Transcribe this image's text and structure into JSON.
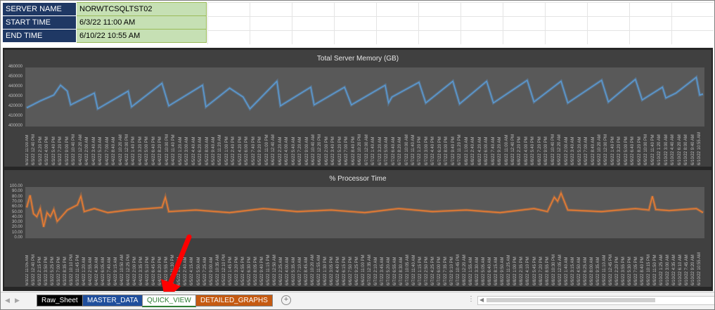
{
  "info": [
    {
      "label": "SERVER NAME",
      "value": "NORWTCSQLTST02"
    },
    {
      "label": "START TIME",
      "value": "6/3/22 11:00 AM"
    },
    {
      "label": "END TIME",
      "value": "6/10/22 10:55 AM"
    }
  ],
  "tabs": [
    {
      "label": "Raw_Sheet",
      "bg": "#000000",
      "fg": "#ffffff"
    },
    {
      "label": "MASTER_DATA",
      "bg": "#1f4e9c",
      "fg": "#ffffff"
    },
    {
      "label": "QUICK_VIEW",
      "bg": "#ffffff",
      "fg": "#2e7d32",
      "active": true
    },
    {
      "label": "DETAILED_GRAPHS",
      "bg": "#c55a11",
      "fg": "#ffffff"
    }
  ],
  "icons": {
    "add_sheet": "plus-circle-icon",
    "annotation": "red-arrow-icon",
    "options": "kebab-icon"
  },
  "colors": {
    "memory_line": "#5b9bd5",
    "cpu_line": "#ed7d31",
    "arrow": "#ff0000"
  },
  "chart_data": [
    {
      "type": "line",
      "title": "Total Server Memory (GB)",
      "ylim": [
        400000,
        460000
      ],
      "yticks": [
        "460000",
        "450000",
        "440000",
        "430000",
        "420000",
        "410000",
        "400000"
      ],
      "xlabels": [
        "6/3/22 11:00 AM",
        "6/3/22 12:40 PM",
        "6/3/22 2:20 PM",
        "6/3/22 4:00 PM",
        "6/3/22 5:40 PM",
        "6/3/22 7:20 PM",
        "6/3/22 9:00 PM",
        "6/3/22 10:40 PM",
        "6/4/22 12:20 AM",
        "6/4/22 2:00 AM",
        "6/4/22 3:40 AM",
        "6/4/22 5:20 AM",
        "6/4/22 7:00 AM",
        "6/4/22 8:40 AM",
        "6/4/22 10:20 AM",
        "6/4/22 12:00 PM",
        "6/4/22 1:40 PM",
        "6/4/22 3:20 PM",
        "6/4/22 5:00 PM",
        "6/4/22 6:40 PM",
        "6/4/22 8:20 PM",
        "6/4/22 10:00 PM",
        "6/4/22 11:40 PM",
        "6/5/22 1:20 AM",
        "6/5/22 3:00 AM",
        "6/5/22 4:40 AM",
        "6/5/22 6:20 AM",
        "6/5/22 8:00 AM",
        "6/5/22 9:40 AM",
        "6/5/22 11:20 AM",
        "6/5/22 1:00 PM",
        "6/5/22 2:40 PM",
        "6/5/22 4:20 PM",
        "6/5/22 6:00 PM",
        "6/5/22 7:40 PM",
        "6/5/22 9:20 PM",
        "6/5/22 11:00 PM",
        "6/6/22 12:40 AM",
        "6/6/22 2:20 AM",
        "6/6/22 4:00 AM",
        "6/6/22 5:40 AM",
        "6/6/22 7:20 AM",
        "6/6/22 9:00 AM",
        "6/6/22 10:40 AM",
        "6/6/22 12:20 PM",
        "6/6/22 2:00 PM",
        "6/6/22 3:40 PM",
        "6/6/22 5:20 PM",
        "6/6/22 7:00 PM",
        "6/6/22 8:40 PM",
        "6/6/22 10:20 PM",
        "6/7/22 12:00 AM",
        "6/7/22 1:40 AM",
        "6/7/22 3:20 AM",
        "6/7/22 5:00 AM",
        "6/7/22 6:40 AM",
        "6/7/22 8:20 AM",
        "6/7/22 10:00 AM",
        "6/7/22 11:40 AM",
        "6/7/22 1:20 PM",
        "6/7/22 3:00 PM",
        "6/7/22 4:40 PM",
        "6/7/22 6:20 PM",
        "6/7/22 8:00 PM",
        "6/7/22 9:40 PM",
        "6/7/22 11:20 PM",
        "6/8/22 1:00 AM",
        "6/8/22 2:40 AM",
        "6/8/22 4:20 AM",
        "6/8/22 6:00 AM",
        "6/8/22 7:40 AM",
        "6/8/22 9:20 AM",
        "6/8/22 11:00 AM",
        "6/8/22 12:40 PM",
        "6/8/22 2:20 PM",
        "6/8/22 4:00 PM",
        "6/8/22 5:40 PM",
        "6/8/22 7:20 PM",
        "6/8/22 9:00 PM",
        "6/8/22 10:40 PM",
        "6/9/22 12:20 AM",
        "6/9/22 2:00 AM",
        "6/9/22 3:40 AM",
        "6/9/22 5:20 AM",
        "6/9/22 7:00 AM",
        "6/9/22 8:40 AM",
        "6/9/22 10:20 AM",
        "6/9/22 12:00 PM",
        "6/9/22 1:40 PM",
        "6/9/22 3:20 PM",
        "6/9/22 5:00 PM",
        "6/9/22 6:40 PM",
        "6/9/22 8:20 PM",
        "6/9/22 10:00 PM",
        "6/9/22 11:40 PM",
        "6/10/22 1:20 AM",
        "6/10/22 3:00 AM",
        "6/10/22 4:40 AM",
        "6/10/22 6:20 AM",
        "6/10/22 8:00 AM",
        "6/10/22 9:40 AM",
        "6/10/22 10:55 AM"
      ],
      "x": [
        0,
        0.02,
        0.04,
        0.05,
        0.06,
        0.065,
        0.1,
        0.105,
        0.15,
        0.155,
        0.2,
        0.21,
        0.26,
        0.265,
        0.3,
        0.32,
        0.33,
        0.37,
        0.375,
        0.42,
        0.425,
        0.47,
        0.48,
        0.53,
        0.535,
        0.54,
        0.58,
        0.59,
        0.63,
        0.64,
        0.68,
        0.69,
        0.74,
        0.75,
        0.79,
        0.8,
        0.85,
        0.86,
        0.9,
        0.91,
        0.94,
        0.945,
        0.96,
        0.99,
        0.995,
        1.0
      ],
      "values": [
        419000,
        426000,
        432000,
        442000,
        436000,
        422000,
        434000,
        418000,
        436000,
        420000,
        444000,
        421000,
        442000,
        420000,
        439000,
        430000,
        418000,
        446000,
        421000,
        440000,
        422000,
        440000,
        422000,
        442000,
        424000,
        430000,
        445000,
        424000,
        446000,
        423000,
        446000,
        424000,
        447000,
        425000,
        446000,
        424000,
        447000,
        425000,
        448000,
        427000,
        440000,
        429000,
        434000,
        450000,
        432000,
        433000
      ]
    },
    {
      "type": "line",
      "title": "% Processor Time",
      "ylim": [
        0,
        100
      ],
      "yticks": [
        "100.00",
        "90.00",
        "80.00",
        "70.00",
        "60.00",
        "50.00",
        "40.00",
        "30.00",
        "20.00",
        "10.00",
        "0.00"
      ],
      "xlabels": [
        "6/3/22 11:05 AM",
        "6/3/22 12:40 PM",
        "6/3/22 2:15 PM",
        "6/3/22 3:50 PM",
        "6/3/22 5:25 PM",
        "6/3/22 7:00 PM",
        "6/3/22 8:35 PM",
        "6/3/22 10:10 PM",
        "6/3/22 11:45 PM",
        "6/4/22 1:20 AM",
        "6/4/22 2:55 AM",
        "6/4/22 4:30 AM",
        "6/4/22 6:05 AM",
        "6/4/22 7:40 AM",
        "6/4/22 9:15 AM",
        "6/4/22 10:50 AM",
        "6/4/22 12:25 PM",
        "6/4/22 2:00 PM",
        "6/4/22 3:35 PM",
        "6/4/22 5:10 PM",
        "6/4/22 6:45 PM",
        "6/4/22 8:20 PM",
        "6/4/22 9:55 PM",
        "6/4/22 11:30 PM",
        "6/5/22 1:05 AM",
        "6/5/22 2:40 AM",
        "6/5/22 4:15 AM",
        "6/5/22 5:50 AM",
        "6/5/22 7:25 AM",
        "6/5/22 9:00 AM",
        "6/5/22 10:35 AM",
        "6/5/22 12:10 PM",
        "6/5/22 1:45 PM",
        "6/5/22 3:20 PM",
        "6/5/22 4:55 PM",
        "6/5/22 6:30 PM",
        "6/5/22 8:05 PM",
        "6/5/22 9:40 PM",
        "6/5/22 11:15 PM",
        "6/6/22 12:50 AM",
        "6/6/22 2:25 AM",
        "6/6/22 4:00 AM",
        "6/6/22 5:35 AM",
        "6/6/22 7:10 AM",
        "6/6/22 8:45 AM",
        "6/6/22 10:20 AM",
        "6/6/22 11:55 AM",
        "6/6/22 1:30 PM",
        "6/6/22 3:05 PM",
        "6/6/22 4:40 PM",
        "6/6/22 6:15 PM",
        "6/6/22 7:50 PM",
        "6/6/22 9:25 PM",
        "6/6/22 11:00 PM",
        "6/7/22 12:35 AM",
        "6/7/22 2:10 AM",
        "6/7/22 3:45 AM",
        "6/7/22 5:20 AM",
        "6/7/22 6:55 AM",
        "6/7/22 8:30 AM",
        "6/7/22 10:05 AM",
        "6/7/22 11:40 AM",
        "6/7/22 1:15 PM",
        "6/7/22 2:50 PM",
        "6/7/22 4:25 PM",
        "6/7/22 6:00 PM",
        "6/7/22 7:35 PM",
        "6/7/22 9:10 PM",
        "6/7/22 10:45 PM",
        "6/8/22 12:20 AM",
        "6/8/22 1:55 AM",
        "6/8/22 3:30 AM",
        "6/8/22 5:05 AM",
        "6/8/22 6:40 AM",
        "6/8/22 8:15 AM",
        "6/8/22 9:50 AM",
        "6/8/22 11:25 AM",
        "6/8/22 1:00 PM",
        "6/8/22 2:35 PM",
        "6/8/22 4:10 PM",
        "6/8/22 5:45 PM",
        "6/8/22 7:20 PM",
        "6/8/22 8:55 PM",
        "6/8/22 10:30 PM",
        "6/9/22 12:05 AM",
        "6/9/22 1:40 AM",
        "6/9/22 3:15 AM",
        "6/9/22 4:50 AM",
        "6/9/22 6:25 AM",
        "6/9/22 8:00 AM",
        "6/9/22 9:35 AM",
        "6/9/22 11:10 AM",
        "6/9/22 12:45 PM",
        "6/9/22 2:20 PM",
        "6/9/22 3:55 PM",
        "6/9/22 5:30 PM",
        "6/9/22 7:05 PM",
        "6/9/22 8:40 PM",
        "6/9/22 10:15 PM",
        "6/9/22 11:50 PM",
        "6/10/22 1:25 AM",
        "6/10/22 3:00 AM",
        "6/10/22 4:35 AM",
        "6/10/22 6:10 AM",
        "6/10/22 7:45 AM",
        "6/10/22 9:20 AM",
        "6/10/22 10:55 AM"
      ],
      "x": [
        0,
        0.005,
        0.01,
        0.015,
        0.02,
        0.025,
        0.03,
        0.035,
        0.04,
        0.045,
        0.05,
        0.06,
        0.075,
        0.08,
        0.085,
        0.1,
        0.12,
        0.15,
        0.2,
        0.205,
        0.21,
        0.25,
        0.3,
        0.35,
        0.4,
        0.45,
        0.5,
        0.55,
        0.6,
        0.65,
        0.7,
        0.75,
        0.77,
        0.78,
        0.785,
        0.79,
        0.8,
        0.85,
        0.9,
        0.92,
        0.925,
        0.93,
        0.95,
        0.99,
        1.0
      ],
      "values": [
        60,
        84,
        48,
        42,
        58,
        22,
        50,
        42,
        56,
        33,
        40,
        55,
        65,
        82,
        52,
        58,
        50,
        55,
        60,
        80,
        52,
        55,
        50,
        58,
        52,
        55,
        50,
        58,
        52,
        55,
        50,
        58,
        52,
        80,
        72,
        88,
        55,
        52,
        58,
        55,
        82,
        56,
        54,
        58,
        50
      ]
    }
  ]
}
